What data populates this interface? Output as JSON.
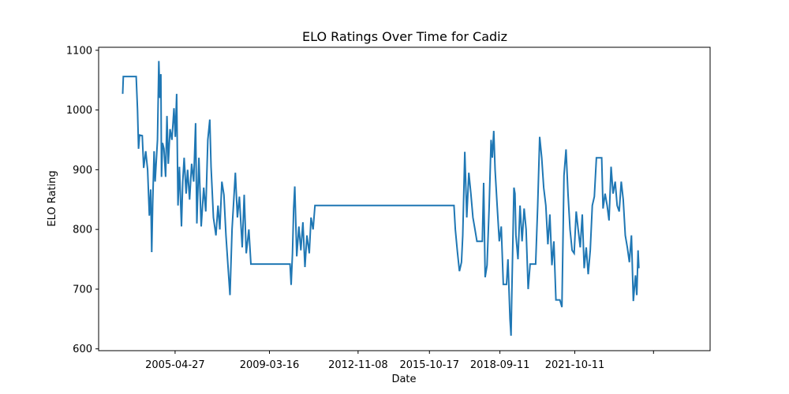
{
  "chart_data": {
    "type": "line",
    "title": "ELO Ratings Over Time for Cadiz",
    "xlabel": "Date",
    "ylabel": "ELO Rating",
    "x_axis": {
      "type": "date",
      "range": [
        "2002-03-04",
        "2027-05-08"
      ],
      "tick_values": [
        "2005-04-27",
        "2009-03-16",
        "2012-11-08",
        "2015-10-17",
        "2018-09-11",
        "2021-10-11",
        "2025-01-07"
      ],
      "tick_labels": [
        "2005-04-27",
        "2009-03-16",
        "2012-11-08",
        "2015-10-17",
        "2018-09-11",
        "2021-10-11",
        ""
      ]
    },
    "y_axis": {
      "range": [
        597,
        1105
      ],
      "ticks": [
        600,
        700,
        800,
        900,
        1000,
        1100
      ]
    },
    "grid": false,
    "color": "#1f77b4",
    "series": [
      {
        "points": [
          [
            "2003-03-01",
            1027
          ],
          [
            "2003-03-10",
            1056
          ],
          [
            "2003-09-20",
            1056
          ],
          [
            "2003-10-10",
            1000
          ],
          [
            "2003-10-25",
            935
          ],
          [
            "2003-11-10",
            958
          ],
          [
            "2003-12-20",
            957
          ],
          [
            "2004-01-10",
            903
          ],
          [
            "2004-02-10",
            931
          ],
          [
            "2004-03-10",
            900
          ],
          [
            "2004-04-05",
            823
          ],
          [
            "2004-04-25",
            867
          ],
          [
            "2004-05-10",
            762
          ],
          [
            "2004-05-25",
            842
          ],
          [
            "2004-06-15",
            931
          ],
          [
            "2004-07-01",
            880
          ],
          [
            "2004-08-05",
            950
          ],
          [
            "2004-08-25",
            1082
          ],
          [
            "2004-09-10",
            1020
          ],
          [
            "2004-09-25",
            1060
          ],
          [
            "2004-10-05",
            888
          ],
          [
            "2004-10-20",
            945
          ],
          [
            "2004-11-10",
            935
          ],
          [
            "2004-12-05",
            888
          ],
          [
            "2004-12-25",
            990
          ],
          [
            "2005-01-15",
            910
          ],
          [
            "2005-02-10",
            968
          ],
          [
            "2005-03-10",
            950
          ],
          [
            "2005-04-10",
            1003
          ],
          [
            "2005-04-30",
            955
          ],
          [
            "2005-05-20",
            1027
          ],
          [
            "2005-06-10",
            840
          ],
          [
            "2005-07-01",
            905
          ],
          [
            "2005-08-01",
            805
          ],
          [
            "2005-08-20",
            880
          ],
          [
            "2005-09-10",
            920
          ],
          [
            "2005-10-10",
            860
          ],
          [
            "2005-11-01",
            900
          ],
          [
            "2005-12-01",
            850
          ],
          [
            "2006-01-01",
            910
          ],
          [
            "2006-02-01",
            880
          ],
          [
            "2006-03-01",
            978
          ],
          [
            "2006-03-20",
            810
          ],
          [
            "2006-04-20",
            920
          ],
          [
            "2006-05-25",
            805
          ],
          [
            "2006-07-01",
            870
          ],
          [
            "2006-08-01",
            830
          ],
          [
            "2006-09-01",
            950
          ],
          [
            "2006-10-01",
            984
          ],
          [
            "2006-10-20",
            905
          ],
          [
            "2006-11-25",
            820
          ],
          [
            "2007-01-01",
            790
          ],
          [
            "2007-02-01",
            840
          ],
          [
            "2007-03-01",
            800
          ],
          [
            "2007-04-01",
            880
          ],
          [
            "2007-05-01",
            858
          ],
          [
            "2007-06-01",
            790
          ],
          [
            "2007-07-01",
            740
          ],
          [
            "2007-08-01",
            690
          ],
          [
            "2007-09-01",
            800
          ],
          [
            "2007-10-20",
            895
          ],
          [
            "2007-11-20",
            820
          ],
          [
            "2007-12-20",
            855
          ],
          [
            "2008-02-01",
            770
          ],
          [
            "2008-03-01",
            858
          ],
          [
            "2008-04-01",
            760
          ],
          [
            "2008-05-10",
            800
          ],
          [
            "2008-06-10",
            742
          ],
          [
            "2008-08-01",
            742
          ],
          [
            "2010-01-20",
            742
          ],
          [
            "2010-02-05",
            707
          ],
          [
            "2010-02-25",
            760
          ],
          [
            "2010-03-15",
            835
          ],
          [
            "2010-04-01",
            872
          ],
          [
            "2010-05-01",
            755
          ],
          [
            "2010-06-01",
            805
          ],
          [
            "2010-07-01",
            765
          ],
          [
            "2010-08-01",
            812
          ],
          [
            "2010-09-01",
            737
          ],
          [
            "2010-10-01",
            790
          ],
          [
            "2010-11-05",
            760
          ],
          [
            "2010-12-01",
            820
          ],
          [
            "2011-01-01",
            800
          ],
          [
            "2011-01-30",
            840
          ],
          [
            "2016-10-20",
            840
          ],
          [
            "2016-11-10",
            800
          ],
          [
            "2016-12-10",
            763
          ],
          [
            "2017-01-10",
            730
          ],
          [
            "2017-02-10",
            745
          ],
          [
            "2017-03-01",
            790
          ],
          [
            "2017-04-01",
            930
          ],
          [
            "2017-05-01",
            820
          ],
          [
            "2017-06-01",
            895
          ],
          [
            "2017-07-01",
            860
          ],
          [
            "2017-08-01",
            820
          ],
          [
            "2017-09-01",
            800
          ],
          [
            "2017-10-01",
            780
          ],
          [
            "2017-12-20",
            780
          ],
          [
            "2018-01-10",
            878
          ],
          [
            "2018-02-01",
            720
          ],
          [
            "2018-03-01",
            740
          ],
          [
            "2018-04-01",
            835
          ],
          [
            "2018-05-01",
            950
          ],
          [
            "2018-05-20",
            920
          ],
          [
            "2018-06-10",
            965
          ],
          [
            "2018-07-01",
            900
          ],
          [
            "2018-08-01",
            840
          ],
          [
            "2018-09-01",
            780
          ],
          [
            "2018-10-01",
            805
          ],
          [
            "2018-11-01",
            708
          ],
          [
            "2018-12-20",
            708
          ],
          [
            "2019-01-10",
            750
          ],
          [
            "2019-02-10",
            650
          ],
          [
            "2019-02-25",
            622
          ],
          [
            "2019-03-10",
            700
          ],
          [
            "2019-04-10",
            870
          ],
          [
            "2019-04-25",
            860
          ],
          [
            "2019-05-10",
            790
          ],
          [
            "2019-06-10",
            750
          ],
          [
            "2019-07-10",
            840
          ],
          [
            "2019-08-10",
            780
          ],
          [
            "2019-09-10",
            835
          ],
          [
            "2019-10-10",
            800
          ],
          [
            "2019-11-10",
            700
          ],
          [
            "2019-12-10",
            742
          ],
          [
            "2020-03-01",
            742
          ],
          [
            "2020-04-01",
            840
          ],
          [
            "2020-05-01",
            955
          ],
          [
            "2020-06-01",
            920
          ],
          [
            "2020-07-01",
            870
          ],
          [
            "2020-08-01",
            840
          ],
          [
            "2020-09-01",
            775
          ],
          [
            "2020-10-01",
            825
          ],
          [
            "2020-11-01",
            740
          ],
          [
            "2020-12-01",
            780
          ],
          [
            "2021-01-01",
            682
          ],
          [
            "2021-03-01",
            682
          ],
          [
            "2021-04-01",
            670
          ],
          [
            "2021-05-01",
            890
          ],
          [
            "2021-06-01",
            934
          ],
          [
            "2021-07-01",
            860
          ],
          [
            "2021-08-01",
            800
          ],
          [
            "2021-09-01",
            765
          ],
          [
            "2021-10-01",
            760
          ],
          [
            "2021-11-01",
            830
          ],
          [
            "2021-12-01",
            800
          ],
          [
            "2022-01-01",
            770
          ],
          [
            "2022-02-01",
            825
          ],
          [
            "2022-03-01",
            735
          ],
          [
            "2022-04-01",
            770
          ],
          [
            "2022-05-01",
            725
          ],
          [
            "2022-06-01",
            765
          ],
          [
            "2022-07-01",
            840
          ],
          [
            "2022-08-01",
            855
          ],
          [
            "2022-09-01",
            920
          ],
          [
            "2022-11-20",
            920
          ],
          [
            "2022-12-10",
            835
          ],
          [
            "2023-01-10",
            860
          ],
          [
            "2023-02-10",
            840
          ],
          [
            "2023-03-10",
            815
          ],
          [
            "2023-04-10",
            905
          ],
          [
            "2023-05-10",
            860
          ],
          [
            "2023-06-10",
            880
          ],
          [
            "2023-07-10",
            840
          ],
          [
            "2023-08-10",
            830
          ],
          [
            "2023-09-10",
            880
          ],
          [
            "2023-10-10",
            850
          ],
          [
            "2023-11-10",
            790
          ],
          [
            "2023-12-10",
            770
          ],
          [
            "2024-01-10",
            745
          ],
          [
            "2024-02-10",
            790
          ],
          [
            "2024-03-10",
            680
          ],
          [
            "2024-04-10",
            723
          ],
          [
            "2024-05-01",
            690
          ],
          [
            "2024-05-20",
            765
          ],
          [
            "2024-06-01",
            735
          ]
        ]
      }
    ]
  }
}
